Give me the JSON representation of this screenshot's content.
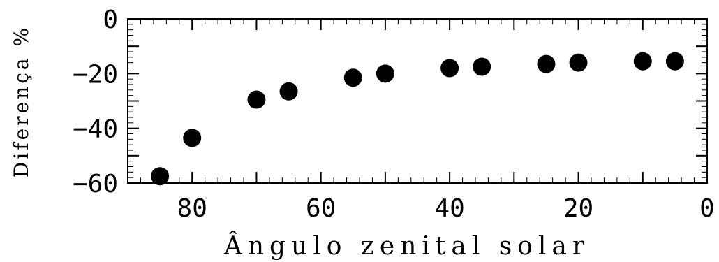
{
  "chart_data": {
    "type": "scatter",
    "xlabel": "Ângulo zenital solar",
    "ylabel": "Diferença %",
    "xlim": [
      90,
      0
    ],
    "ylim": [
      -60,
      0
    ],
    "x_reversed": true,
    "x_ticks": [
      80,
      60,
      40,
      20,
      0
    ],
    "y_ticks": [
      0,
      -20,
      -40,
      -60
    ],
    "x_tick_labels": [
      "80",
      "60",
      "40",
      "20",
      "0"
    ],
    "y_tick_labels": [
      "0",
      "−20",
      "−40",
      "−60"
    ],
    "grid": false,
    "marker_color": "#000000",
    "points": [
      {
        "x": 85,
        "y": -57.5
      },
      {
        "x": 80,
        "y": -43.5
      },
      {
        "x": 70,
        "y": -29.5
      },
      {
        "x": 65,
        "y": -26.5
      },
      {
        "x": 55,
        "y": -21.5
      },
      {
        "x": 50,
        "y": -20
      },
      {
        "x": 40,
        "y": -18
      },
      {
        "x": 35,
        "y": -17.5
      },
      {
        "x": 25,
        "y": -16.5
      },
      {
        "x": 20,
        "y": -16
      },
      {
        "x": 10,
        "y": -15.5
      },
      {
        "x": 5,
        "y": -15.5
      }
    ]
  }
}
